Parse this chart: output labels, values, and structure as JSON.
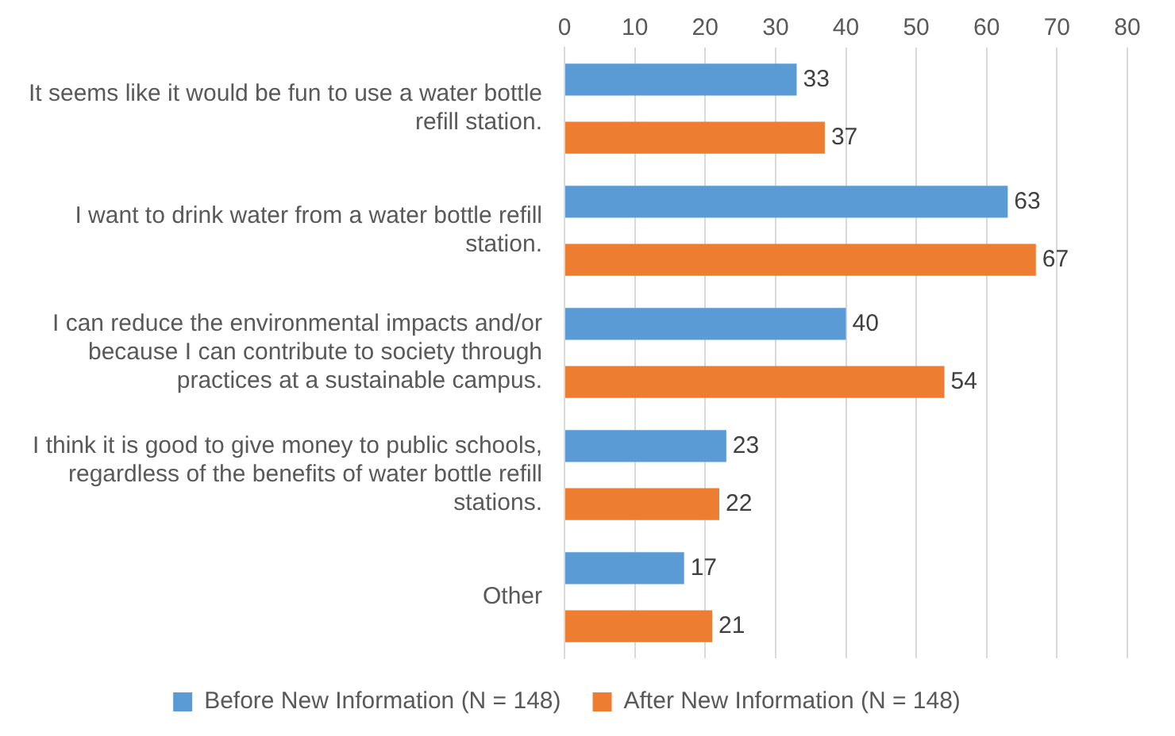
{
  "chart_data": {
    "type": "bar",
    "orientation": "horizontal",
    "categories": [
      "It seems like it would be fun to use a water bottle refill station.",
      "I want to drink water from a water bottle refill station.",
      "I can reduce the environmental impacts and/or because I can contribute to society through practices at a sustainable campus.",
      "I think it is good to give money to public schools, regardless of the benefits of water bottle refill stations.",
      "Other"
    ],
    "series": [
      {
        "name": "Before New Information (N = 148)",
        "color": "#5b9bd5",
        "values": [
          33,
          63,
          40,
          23,
          17
        ]
      },
      {
        "name": "After New Information (N = 148)",
        "color": "#ed7d31",
        "values": [
          37,
          67,
          54,
          22,
          21
        ]
      }
    ],
    "xlim": [
      0,
      80
    ],
    "xticks": [
      0,
      10,
      20,
      30,
      40,
      50,
      60,
      70,
      80
    ],
    "grid": "x",
    "legend": "bottom",
    "data_labels": true
  }
}
